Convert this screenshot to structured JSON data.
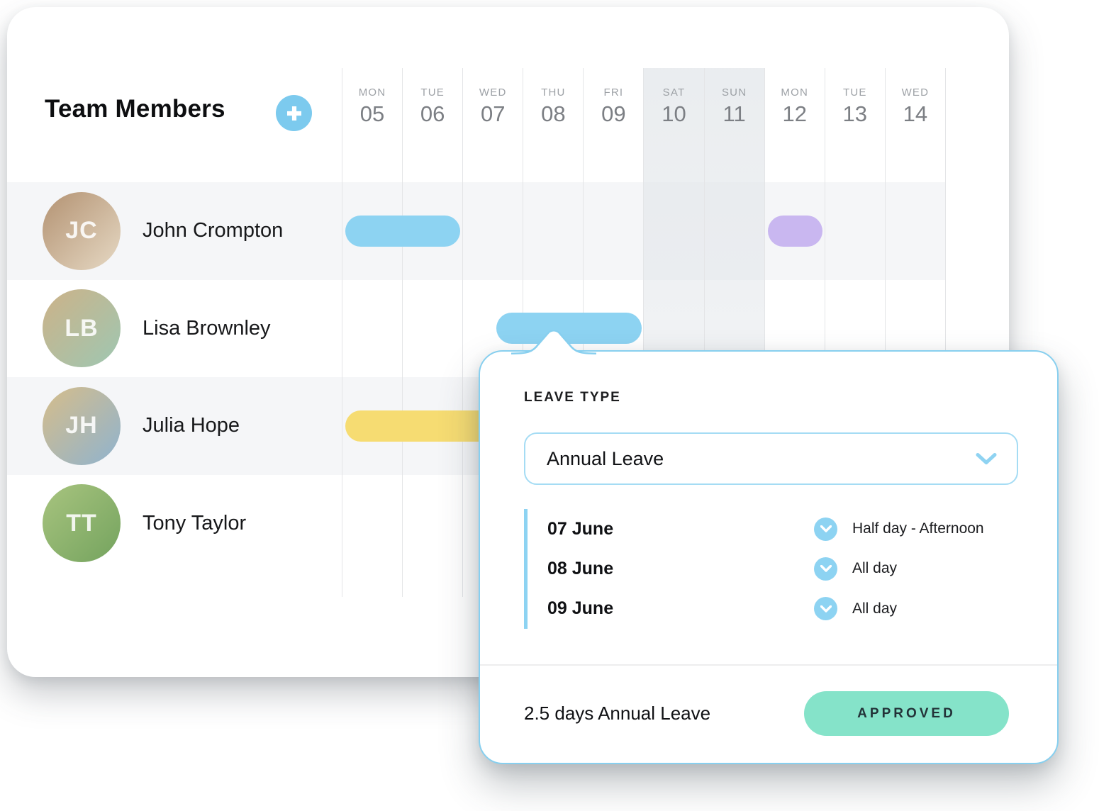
{
  "header": {
    "title": "Team Members",
    "add_button_label": "+"
  },
  "calendar": {
    "days": [
      {
        "dow": "MON",
        "date": "05",
        "weekend": false
      },
      {
        "dow": "TUE",
        "date": "06",
        "weekend": false
      },
      {
        "dow": "WED",
        "date": "07",
        "weekend": false
      },
      {
        "dow": "THU",
        "date": "08",
        "weekend": false
      },
      {
        "dow": "FRI",
        "date": "09",
        "weekend": false
      },
      {
        "dow": "SAT",
        "date": "10",
        "weekend": true
      },
      {
        "dow": "SUN",
        "date": "11",
        "weekend": true
      },
      {
        "dow": "MON",
        "date": "12",
        "weekend": false
      },
      {
        "dow": "TUE",
        "date": "13",
        "weekend": false
      },
      {
        "dow": "WED",
        "date": "14",
        "weekend": false
      }
    ],
    "bars": [
      {
        "member": "John Crompton",
        "row": 0,
        "start": 0,
        "span": 2,
        "color": "blue",
        "from_day": "05",
        "to_day": "06"
      },
      {
        "member": "John Crompton",
        "row": 0,
        "start": 7,
        "span": 1,
        "color": "purple",
        "from_day": "12",
        "to_day": "12"
      },
      {
        "member": "Lisa Brownley",
        "row": 1,
        "start": 2.5,
        "span": 2.5,
        "color": "blue",
        "from_day": "07 (afternoon)",
        "to_day": "09",
        "selected": true
      },
      {
        "member": "Julia Hope",
        "row": 2,
        "start": 0,
        "span": 3,
        "color": "yellow",
        "from_day": "05",
        "to_day": "hidden behind popup"
      }
    ]
  },
  "members": [
    {
      "name": "John Crompton",
      "initials": "JC",
      "avatar_colors": [
        "#b39272",
        "#e6d9c4"
      ]
    },
    {
      "name": "Lisa Brownley",
      "initials": "LB",
      "avatar_colors": [
        "#cdb288",
        "#9ec7b2"
      ]
    },
    {
      "name": "Julia Hope",
      "initials": "JH",
      "avatar_colors": [
        "#d6bd8a",
        "#8fb3cf"
      ]
    },
    {
      "name": "Tony Taylor",
      "initials": "TT",
      "avatar_colors": [
        "#a8c47f",
        "#74a35e"
      ]
    }
  ],
  "popup": {
    "leave_type_label": "LEAVE TYPE",
    "leave_type_value": "Annual Leave",
    "entries": [
      {
        "date": "07 June",
        "duration": "Half day - Afternoon"
      },
      {
        "date": "08 June",
        "duration": "All day"
      },
      {
        "date": "09 June",
        "duration": "All day"
      }
    ],
    "summary": "2.5 days Annual Leave",
    "status": "APPROVED"
  },
  "colors": {
    "blue": "#8dd3f2",
    "purple": "#c9b7f0",
    "yellow": "#f6dc72",
    "approved": "#85e3c9",
    "accent_border": "#87cfef"
  }
}
